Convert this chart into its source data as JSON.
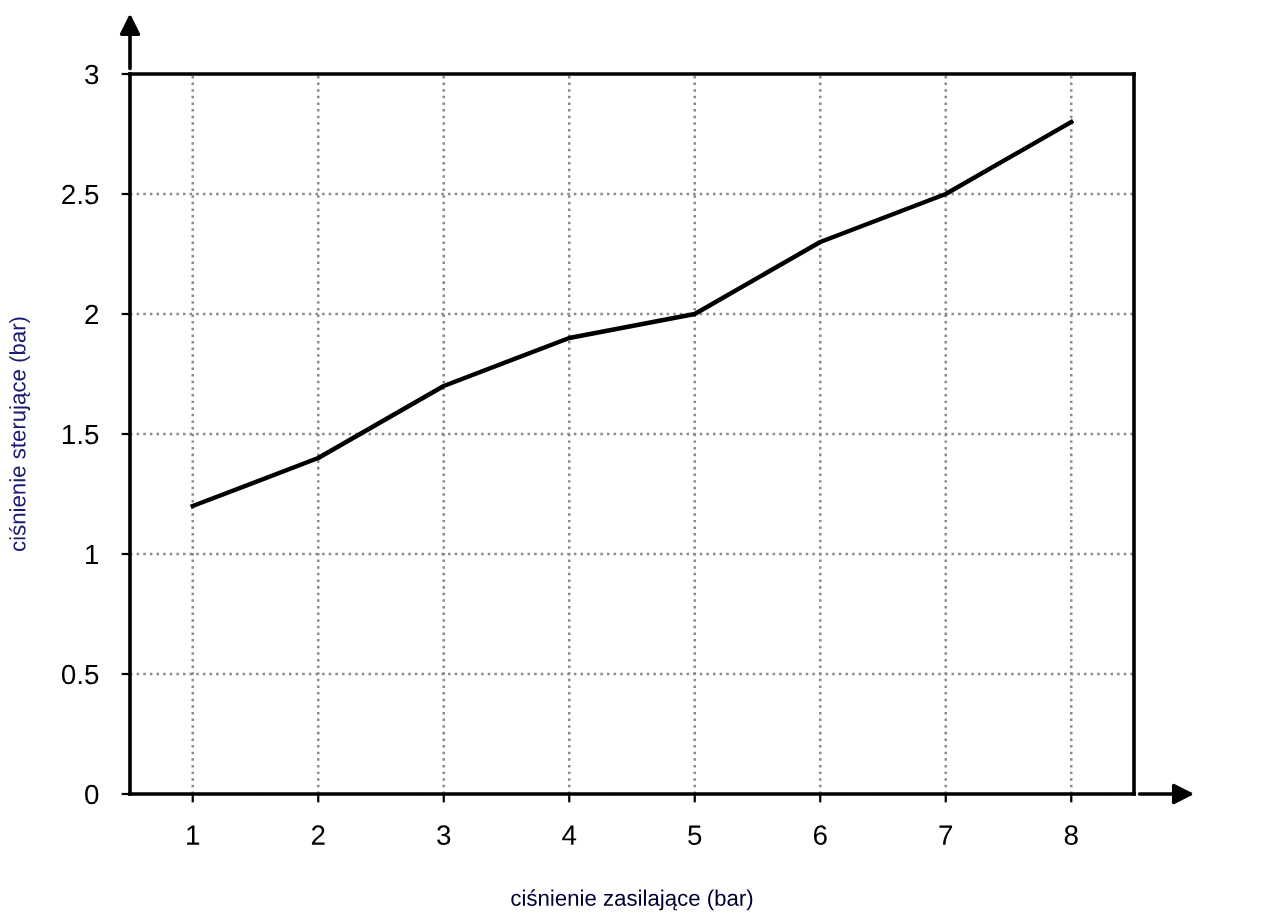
{
  "chart_data": {
    "type": "line",
    "xlabel": "ciśnienie zasilające (bar)",
    "ylabel": "ciśnienie sterujące (bar)",
    "x": [
      1,
      2,
      3,
      4,
      5,
      6,
      7,
      8
    ],
    "series": [
      {
        "color": "#000000",
        "values": [
          1.2,
          1.4,
          1.7,
          1.9,
          2.0,
          2.3,
          2.5,
          2.8
        ]
      }
    ],
    "xlim": [
      0.5,
      8.5
    ],
    "xticks": [
      1,
      2,
      3,
      4,
      5,
      6,
      7,
      8
    ],
    "ylim": [
      0,
      3
    ],
    "yticks": [
      0,
      0.5,
      1,
      1.5,
      2,
      2.5,
      3
    ],
    "grid": true,
    "marker": "none",
    "line_style": "solid"
  }
}
